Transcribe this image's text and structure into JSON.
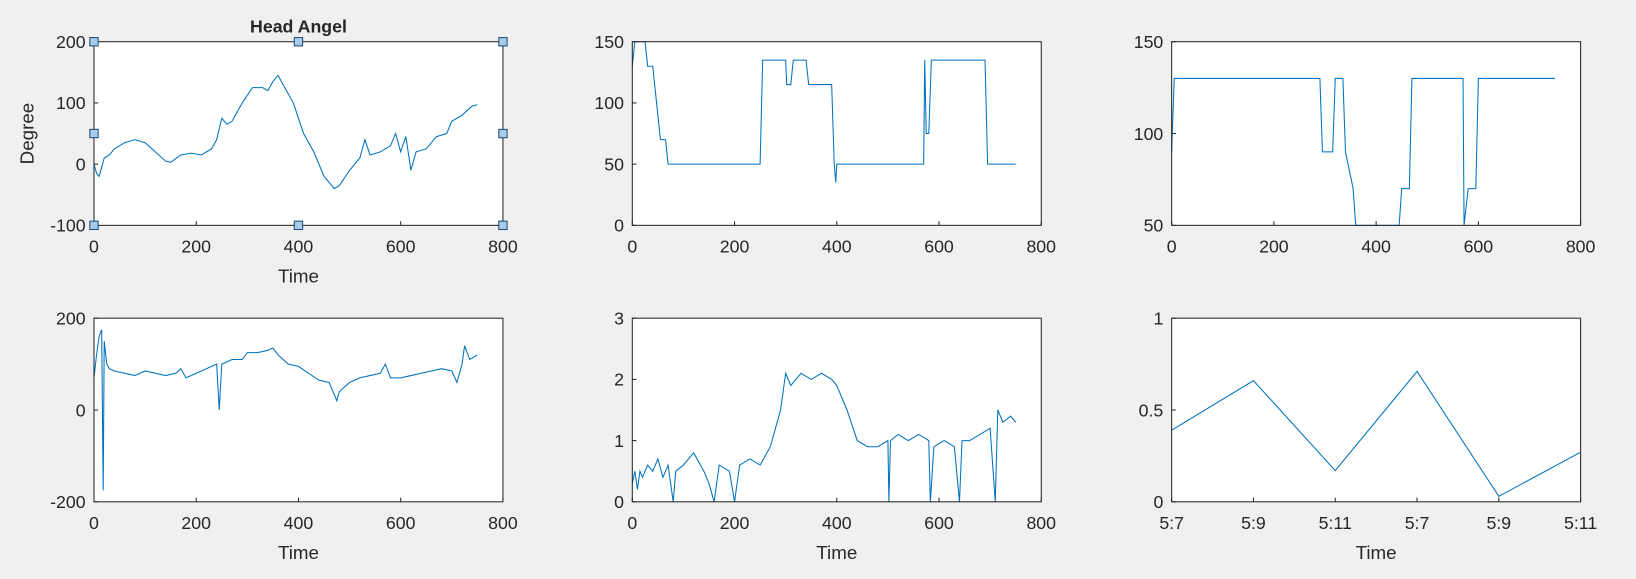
{
  "chart_data": [
    {
      "type": "line",
      "title": "Head Angel",
      "ylabel": "Degree",
      "xlabel": "Time",
      "color": "#0072bd",
      "x": [
        0,
        5,
        10,
        15,
        20,
        30,
        40,
        60,
        80,
        100,
        120,
        140,
        150,
        170,
        190,
        210,
        230,
        240,
        250,
        260,
        270,
        290,
        310,
        330,
        340,
        350,
        360,
        370,
        390,
        410,
        430,
        450,
        470,
        480,
        500,
        520,
        530,
        540,
        560,
        580,
        590,
        600,
        610,
        620,
        630,
        650,
        670,
        690,
        700,
        720,
        740,
        750
      ],
      "values": [
        0,
        -15,
        -20,
        -5,
        10,
        15,
        25,
        35,
        40,
        35,
        20,
        5,
        3,
        15,
        18,
        15,
        25,
        40,
        75,
        65,
        70,
        100,
        125,
        125,
        120,
        135,
        145,
        130,
        100,
        50,
        20,
        -20,
        -40,
        -35,
        -10,
        10,
        40,
        15,
        20,
        30,
        50,
        20,
        45,
        -10,
        20,
        25,
        45,
        50,
        70,
        80,
        95,
        97
      ],
      "xlim": [
        0,
        800
      ],
      "ylim": [
        -100,
        200
      ],
      "xticks": [
        0,
        200,
        400,
        600,
        800
      ],
      "yticks": [
        -100,
        0,
        100,
        200
      ]
    },
    {
      "type": "line",
      "color": "#0072bd",
      "x": [
        0,
        5,
        25,
        30,
        40,
        45,
        50,
        55,
        65,
        70,
        250,
        255,
        300,
        302,
        310,
        315,
        340,
        345,
        390,
        395,
        398,
        400,
        570,
        572,
        575,
        580,
        585,
        690,
        695,
        750
      ],
      "values": [
        130,
        150,
        150,
        130,
        130,
        110,
        90,
        70,
        70,
        50,
        50,
        135,
        135,
        115,
        115,
        135,
        135,
        115,
        115,
        50,
        35,
        50,
        50,
        135,
        75,
        75,
        135,
        135,
        50,
        50
      ],
      "xlim": [
        0,
        800
      ],
      "ylim": [
        0,
        150
      ],
      "xticks": [
        0,
        200,
        400,
        600,
        800
      ],
      "yticks": [
        0,
        50,
        100,
        150
      ]
    },
    {
      "type": "line",
      "color": "#0072bd",
      "x": [
        0,
        5,
        290,
        295,
        315,
        320,
        335,
        340,
        355,
        360,
        445,
        450,
        465,
        470,
        570,
        572,
        580,
        595,
        600,
        750
      ],
      "values": [
        90,
        130,
        130,
        90,
        90,
        130,
        130,
        90,
        70,
        50,
        50,
        70,
        70,
        130,
        130,
        50,
        70,
        70,
        130,
        130
      ],
      "xlim": [
        0,
        800
      ],
      "ylim": [
        50,
        150
      ],
      "xticks": [
        0,
        200,
        400,
        600,
        800
      ],
      "yticks": [
        50,
        100,
        150
      ]
    },
    {
      "type": "line",
      "xlabel": "Time",
      "color": "#0072bd",
      "x": [
        0,
        5,
        10,
        15,
        18,
        20,
        25,
        30,
        40,
        60,
        80,
        100,
        120,
        140,
        160,
        170,
        180,
        200,
        220,
        240,
        245,
        250,
        270,
        290,
        300,
        320,
        340,
        350,
        360,
        380,
        400,
        420,
        440,
        460,
        475,
        480,
        500,
        520,
        540,
        560,
        570,
        580,
        600,
        620,
        640,
        660,
        680,
        700,
        710,
        720,
        725,
        735,
        750
      ],
      "values": [
        70,
        120,
        160,
        175,
        -175,
        150,
        100,
        90,
        85,
        80,
        75,
        85,
        80,
        75,
        80,
        90,
        70,
        80,
        90,
        100,
        0,
        100,
        110,
        110,
        125,
        125,
        130,
        135,
        120,
        100,
        95,
        80,
        65,
        60,
        20,
        40,
        60,
        70,
        75,
        80,
        100,
        70,
        70,
        75,
        80,
        85,
        90,
        85,
        60,
        100,
        140,
        110,
        120
      ],
      "xlim": [
        0,
        800
      ],
      "ylim": [
        -200,
        200
      ],
      "xticks": [
        0,
        200,
        400,
        600,
        800
      ],
      "yticks": [
        -200,
        0,
        200
      ]
    },
    {
      "type": "line",
      "xlabel": "Time",
      "color": "#0072bd",
      "x": [
        0,
        5,
        10,
        15,
        20,
        30,
        40,
        50,
        60,
        70,
        80,
        85,
        100,
        120,
        140,
        150,
        160,
        170,
        190,
        200,
        210,
        230,
        250,
        270,
        290,
        300,
        310,
        330,
        350,
        370,
        390,
        400,
        420,
        440,
        460,
        480,
        500,
        502,
        505,
        520,
        540,
        560,
        580,
        583,
        590,
        610,
        630,
        640,
        645,
        660,
        680,
        700,
        710,
        715,
        725,
        740,
        750
      ],
      "values": [
        0.3,
        0.5,
        0.2,
        0.5,
        0.4,
        0.6,
        0.5,
        0.7,
        0.4,
        0.6,
        0,
        0.5,
        0.6,
        0.8,
        0.5,
        0.3,
        0,
        0.6,
        0.5,
        0,
        0.6,
        0.7,
        0.6,
        0.9,
        1.5,
        2.1,
        1.9,
        2.1,
        2,
        2.1,
        2,
        1.9,
        1.5,
        1,
        0.9,
        0.9,
        1,
        0,
        1,
        1.1,
        1,
        1.1,
        1,
        0,
        0.9,
        1,
        0.9,
        0,
        1,
        1,
        1.1,
        1.2,
        0,
        1.5,
        1.3,
        1.4,
        1.3
      ],
      "xlim": [
        0,
        800
      ],
      "ylim": [
        0,
        3
      ],
      "xticks": [
        0,
        200,
        400,
        600,
        800
      ],
      "yticks": [
        0,
        1,
        2,
        3
      ]
    },
    {
      "type": "category-line",
      "xlabel": "Time",
      "color": "#0072bd",
      "categories": [
        "5:7",
        "5:9",
        "5:11",
        "5:7",
        "5:9",
        "5:11"
      ],
      "values": [
        0.39,
        0.66,
        0.17,
        0.71,
        0.03,
        0.27
      ],
      "ylim": [
        0,
        1
      ],
      "yticks": [
        0,
        0.5,
        1
      ]
    }
  ]
}
